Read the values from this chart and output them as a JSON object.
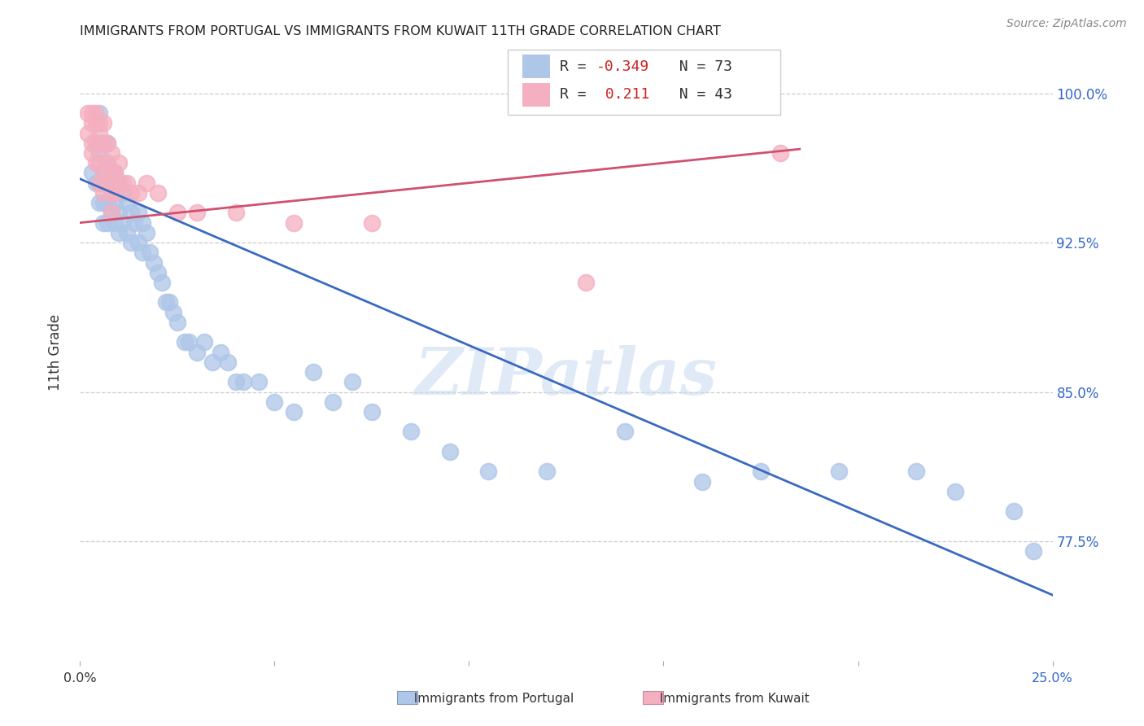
{
  "title": "IMMIGRANTS FROM PORTUGAL VS IMMIGRANTS FROM KUWAIT 11TH GRADE CORRELATION CHART",
  "source": "Source: ZipAtlas.com",
  "ylabel": "11th Grade",
  "xlim": [
    0.0,
    0.25
  ],
  "ylim": [
    0.715,
    1.025
  ],
  "blue_R": -0.349,
  "blue_N": 73,
  "pink_R": 0.211,
  "pink_N": 43,
  "blue_color": "#aec6e8",
  "pink_color": "#f4afc0",
  "blue_line_color": "#3a6abf",
  "pink_line_color": "#d05070",
  "watermark": "ZIPatlas",
  "y_tick_positions": [
    0.775,
    0.85,
    0.925,
    1.0
  ],
  "y_tick_labels": [
    "77.5%",
    "85.0%",
    "92.5%",
    "100.0%"
  ],
  "blue_line_x0": 0.0,
  "blue_line_y0": 0.957,
  "blue_line_x1": 0.25,
  "blue_line_y1": 0.748,
  "pink_line_x0": 0.0,
  "pink_line_y0": 0.935,
  "pink_line_x1": 0.185,
  "pink_line_y1": 0.972,
  "blue_scatter_x": [
    0.003,
    0.004,
    0.004,
    0.005,
    0.005,
    0.005,
    0.005,
    0.006,
    0.006,
    0.006,
    0.006,
    0.007,
    0.007,
    0.007,
    0.007,
    0.007,
    0.008,
    0.008,
    0.008,
    0.009,
    0.009,
    0.009,
    0.01,
    0.01,
    0.01,
    0.011,
    0.011,
    0.012,
    0.012,
    0.013,
    0.013,
    0.014,
    0.015,
    0.015,
    0.016,
    0.016,
    0.017,
    0.018,
    0.019,
    0.02,
    0.021,
    0.022,
    0.023,
    0.024,
    0.025,
    0.027,
    0.028,
    0.03,
    0.032,
    0.034,
    0.036,
    0.038,
    0.04,
    0.042,
    0.046,
    0.05,
    0.055,
    0.06,
    0.065,
    0.07,
    0.075,
    0.085,
    0.095,
    0.105,
    0.12,
    0.14,
    0.16,
    0.175,
    0.195,
    0.215,
    0.225,
    0.24,
    0.245
  ],
  "blue_scatter_y": [
    0.96,
    0.955,
    0.975,
    0.97,
    0.99,
    0.955,
    0.945,
    0.975,
    0.96,
    0.945,
    0.935,
    0.975,
    0.965,
    0.955,
    0.945,
    0.935,
    0.96,
    0.95,
    0.94,
    0.96,
    0.945,
    0.935,
    0.955,
    0.94,
    0.93,
    0.95,
    0.935,
    0.945,
    0.93,
    0.94,
    0.925,
    0.935,
    0.94,
    0.925,
    0.935,
    0.92,
    0.93,
    0.92,
    0.915,
    0.91,
    0.905,
    0.895,
    0.895,
    0.89,
    0.885,
    0.875,
    0.875,
    0.87,
    0.875,
    0.865,
    0.87,
    0.865,
    0.855,
    0.855,
    0.855,
    0.845,
    0.84,
    0.86,
    0.845,
    0.855,
    0.84,
    0.83,
    0.82,
    0.81,
    0.81,
    0.83,
    0.805,
    0.81,
    0.81,
    0.81,
    0.8,
    0.79,
    0.77
  ],
  "pink_scatter_x": [
    0.002,
    0.002,
    0.003,
    0.003,
    0.003,
    0.003,
    0.004,
    0.004,
    0.004,
    0.004,
    0.005,
    0.005,
    0.005,
    0.005,
    0.005,
    0.006,
    0.006,
    0.006,
    0.006,
    0.007,
    0.007,
    0.007,
    0.008,
    0.008,
    0.008,
    0.008,
    0.009,
    0.009,
    0.01,
    0.01,
    0.011,
    0.012,
    0.013,
    0.015,
    0.017,
    0.02,
    0.025,
    0.03,
    0.04,
    0.055,
    0.075,
    0.13,
    0.18
  ],
  "pink_scatter_y": [
    0.99,
    0.98,
    0.99,
    0.985,
    0.975,
    0.97,
    0.99,
    0.985,
    0.975,
    0.965,
    0.985,
    0.98,
    0.975,
    0.965,
    0.955,
    0.985,
    0.975,
    0.96,
    0.95,
    0.975,
    0.965,
    0.955,
    0.97,
    0.96,
    0.95,
    0.94,
    0.96,
    0.95,
    0.965,
    0.955,
    0.955,
    0.955,
    0.95,
    0.95,
    0.955,
    0.95,
    0.94,
    0.94,
    0.94,
    0.935,
    0.935,
    0.905,
    0.97
  ]
}
